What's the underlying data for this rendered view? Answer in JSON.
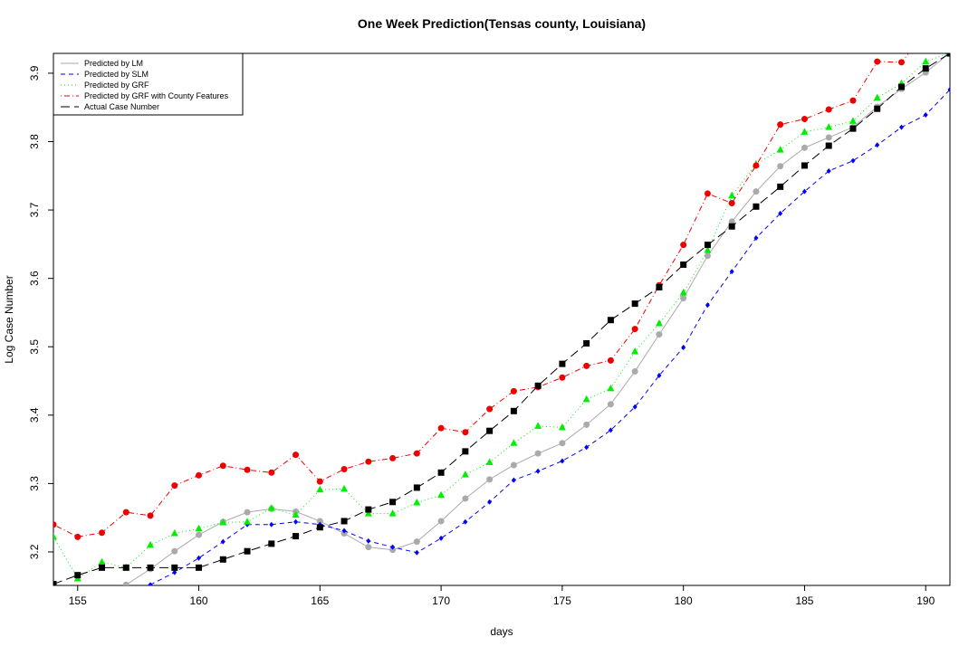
{
  "chart_data": {
    "type": "line",
    "title": "One Week Prediction(Tensas county, Louisiana)",
    "x_label": "days",
    "y_label": "Log Case Number",
    "x": [
      154,
      155,
      156,
      157,
      158,
      159,
      160,
      161,
      162,
      163,
      164,
      165,
      166,
      167,
      168,
      169,
      170,
      171,
      172,
      173,
      174,
      175,
      176,
      177,
      178,
      179,
      180,
      181,
      182,
      183,
      184,
      185,
      186,
      187,
      188,
      189,
      190,
      191
    ],
    "series": [
      {
        "name": "Predicted by LM",
        "color": "#aaaaaa",
        "dash": "solid",
        "marker": "circle",
        "values": [
          null,
          null,
          null,
          3.152,
          3.175,
          3.201,
          3.225,
          3.244,
          3.258,
          3.263,
          3.259,
          3.245,
          3.227,
          3.207,
          3.203,
          3.215,
          3.245,
          3.278,
          3.306,
          3.327,
          3.344,
          3.359,
          3.386,
          3.416,
          3.464,
          3.518,
          3.571,
          3.633,
          3.683,
          3.727,
          3.764,
          3.791,
          3.806,
          3.821,
          3.851,
          3.877,
          3.901,
          3.93
        ]
      },
      {
        "name": "Predicted by SLM",
        "color": "#0000ff",
        "dash": "dashed",
        "marker": "diamond",
        "values": [
          null,
          null,
          null,
          null,
          3.152,
          3.17,
          3.191,
          3.215,
          3.24,
          3.24,
          3.244,
          3.24,
          3.231,
          3.216,
          3.207,
          3.199,
          3.22,
          3.244,
          3.273,
          3.305,
          3.318,
          3.333,
          3.353,
          3.378,
          3.412,
          3.458,
          3.499,
          3.561,
          3.61,
          3.659,
          3.695,
          3.727,
          3.757,
          3.772,
          3.795,
          3.821,
          3.839,
          3.876
        ]
      },
      {
        "name": "Predicted by GRF",
        "color": "#00ee00",
        "dash": "dotted",
        "marker": "triangle",
        "values": [
          3.222,
          3.161,
          3.185,
          3.177,
          3.21,
          3.227,
          3.234,
          3.243,
          3.244,
          3.264,
          3.254,
          3.291,
          3.292,
          3.256,
          3.256,
          3.272,
          3.283,
          3.313,
          3.331,
          3.359,
          3.384,
          3.382,
          3.423,
          3.439,
          3.493,
          3.534,
          3.579,
          3.641,
          3.721,
          3.767,
          3.788,
          3.814,
          3.821,
          3.83,
          3.864,
          3.885,
          3.917,
          3.93
        ]
      },
      {
        "name": "Predicted by GRF with County Features",
        "color": "#ee0000",
        "dash": "dotdash",
        "marker": "circle",
        "values": [
          3.24,
          3.222,
          3.228,
          3.258,
          3.253,
          3.297,
          3.312,
          3.326,
          3.32,
          3.316,
          3.342,
          3.303,
          3.321,
          3.332,
          3.337,
          3.344,
          3.381,
          3.375,
          3.409,
          3.435,
          3.441,
          3.455,
          3.472,
          3.48,
          3.526,
          3.59,
          3.649,
          3.724,
          3.71,
          3.765,
          3.825,
          3.833,
          3.847,
          3.86,
          3.917,
          3.916,
          3.96,
          null
        ]
      },
      {
        "name": "Actual Case Number",
        "color": "#000000",
        "dash": "longdash",
        "marker": "square",
        "values": [
          3.153,
          3.166,
          3.177,
          3.177,
          3.177,
          3.177,
          3.177,
          3.189,
          3.201,
          3.212,
          3.223,
          3.236,
          3.245,
          3.262,
          3.273,
          3.294,
          3.316,
          3.347,
          3.377,
          3.406,
          3.443,
          3.475,
          3.505,
          3.539,
          3.563,
          3.587,
          3.62,
          3.649,
          3.676,
          3.705,
          3.734,
          3.765,
          3.794,
          3.819,
          3.848,
          3.88,
          3.907,
          3.929
        ]
      }
    ],
    "xlim": [
      154,
      191
    ],
    "ylim": [
      3.151,
      3.929
    ],
    "xticks": [
      155,
      160,
      165,
      170,
      175,
      180,
      185,
      190
    ],
    "yticks": [
      3.2,
      3.3,
      3.4,
      3.5,
      3.6,
      3.7,
      3.8,
      3.9
    ],
    "legend": "top-left"
  }
}
